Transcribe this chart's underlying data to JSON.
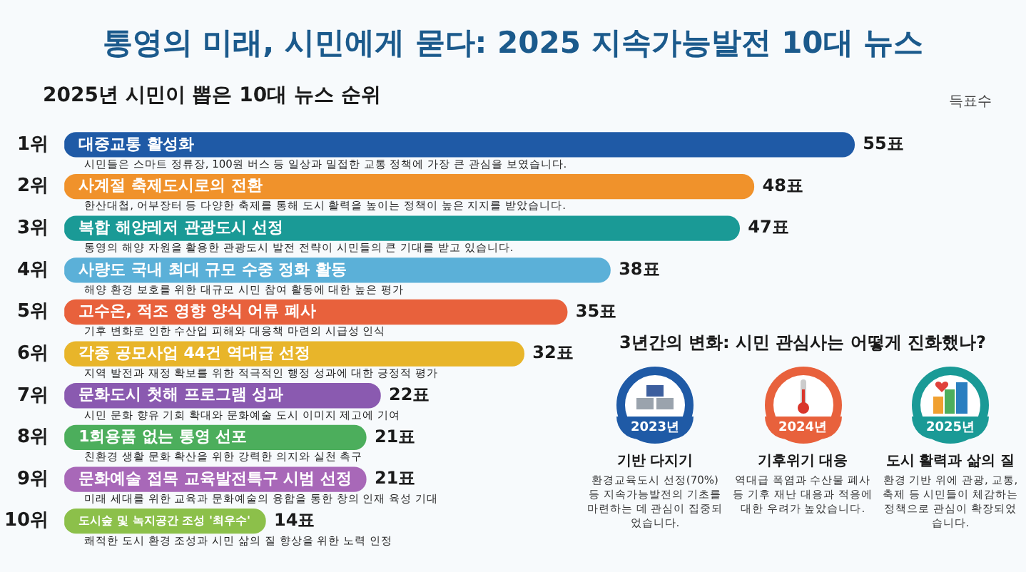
{
  "chart_data": [
    {
      "type": "bar",
      "title": "통영의 미래, 시민에게 묻다: 2025 지속가능발전 10대 뉴스",
      "subtitle": "2025년 시민이 뽑은 10대 뉴스 순위",
      "orientation": "horizontal",
      "tick_labels": "y",
      "categories": [
        "1위",
        "2위",
        "3위",
        "4위",
        "5위",
        "6위",
        "7위",
        "8위",
        "9위",
        "10위"
      ],
      "values": [
        55,
        48,
        47,
        38,
        35,
        32,
        22,
        21,
        21,
        14
      ],
      "colors": [
        "#1f5aa6",
        "#f0922b",
        "#1a9a96",
        "#5bb0d8",
        "#e8613c",
        "#e8b52a",
        "#8a5ab0",
        "#4cae5c",
        "#a868b8",
        "#8cc04a"
      ],
      "value_labels": [
        "55표",
        "48표",
        "47표",
        "38표",
        "35표",
        "32표",
        "22표",
        "21표",
        "21표",
        "14표"
      ],
      "annotations": [
        "득표수",
        {
          "text": "대중교통 활성화",
          "y": "1위"
        },
        {
          "text": "시민들은 스마트 정류장, 100원 버스 등 일상과 밀접한 교통 정책에 가장 큰 관심을 보였습니다.",
          "y": "1위"
        },
        {
          "text": "사계절 축제도시로의 전환",
          "y": "2위"
        },
        {
          "text": "한산대첩, 어부장터 등 다양한 축제를 통해 도시 활력을 높이는 정책이 높은 지지를 받았습니다.",
          "y": "2위"
        },
        {
          "text": "복합 해양레저 관광도시 선정",
          "y": "3위"
        },
        {
          "text": "통영의 해양 자원을 활용한 관광도시 발전 전략이 시민들의 큰 기대를 받고 있습니다.",
          "y": "3위"
        },
        {
          "text": "사량도 국내 최대 규모 수중 정화 활동",
          "y": "4위"
        },
        {
          "text": "해양 환경 보호를 위한 대규모 시민 참여 활동에 대한 높은 평가",
          "y": "4위"
        },
        {
          "text": "고수온, 적조 영향 양식 어류 폐사",
          "y": "5위"
        },
        {
          "text": "기후 변화로 인한 수산업 피해와 대응책 마련의 시급성 인식",
          "y": "5위"
        },
        {
          "text": "각종 공모사업 44건 역대급 선정",
          "y": "6위"
        },
        {
          "text": "지역 발전과 재정 확보를 위한 적극적인 행정 성과에 대한 긍정적 평가",
          "y": "6위"
        },
        {
          "text": "문화도시 첫해 프로그램 성과",
          "y": "7위"
        },
        {
          "text": "시민 문화 향유 기회 확대와 문화예술 도시 이미지 제고에 기여",
          "y": "7위"
        },
        {
          "text": "1회용품 없는 통영 선포",
          "y": "8위"
        },
        {
          "text": "친환경 생활 문화 확산을 위한 강력한 의지와 실천 촉구",
          "y": "8위"
        },
        {
          "text": "문화예술 접목 교육발전특구 시범 선정",
          "y": "9위"
        },
        {
          "text": "미래 세대를 위한 교육과 문화예술의 융합을 통한 창의 인재 육성 기대",
          "y": "9위"
        },
        {
          "text": "도시숲 및 녹지공간 조성 '최우수'",
          "y": "10위"
        },
        {
          "text": "쾌적한 도시 환경 조성과 시민 삶의 질 향상을 위한 노력 인정",
          "y": "10위"
        }
      ]
    },
    {
      "type": "other",
      "title": "3년간의 변화: 시민 관심사는 어떻게 진화했나?",
      "annotations": [
        "2023년",
        "기반 다지기",
        "환경교육도시 선정(70%) 등 지속가능발전의 기초를 마련하는 데 관심이 집중되었습니다.",
        "2024년",
        "기후위기 대응",
        "역대급 폭염과 수산물 폐사 등 기후 재난 대응과 적응에 대한 우려가 높았습니다.",
        "2025년",
        "도시 활력과 삶의 질",
        "환경 기반 위에 관광, 교통, 축제 등 시민들이 체감하는 정책으로 관심이 확장되었습니다."
      ]
    }
  ]
}
